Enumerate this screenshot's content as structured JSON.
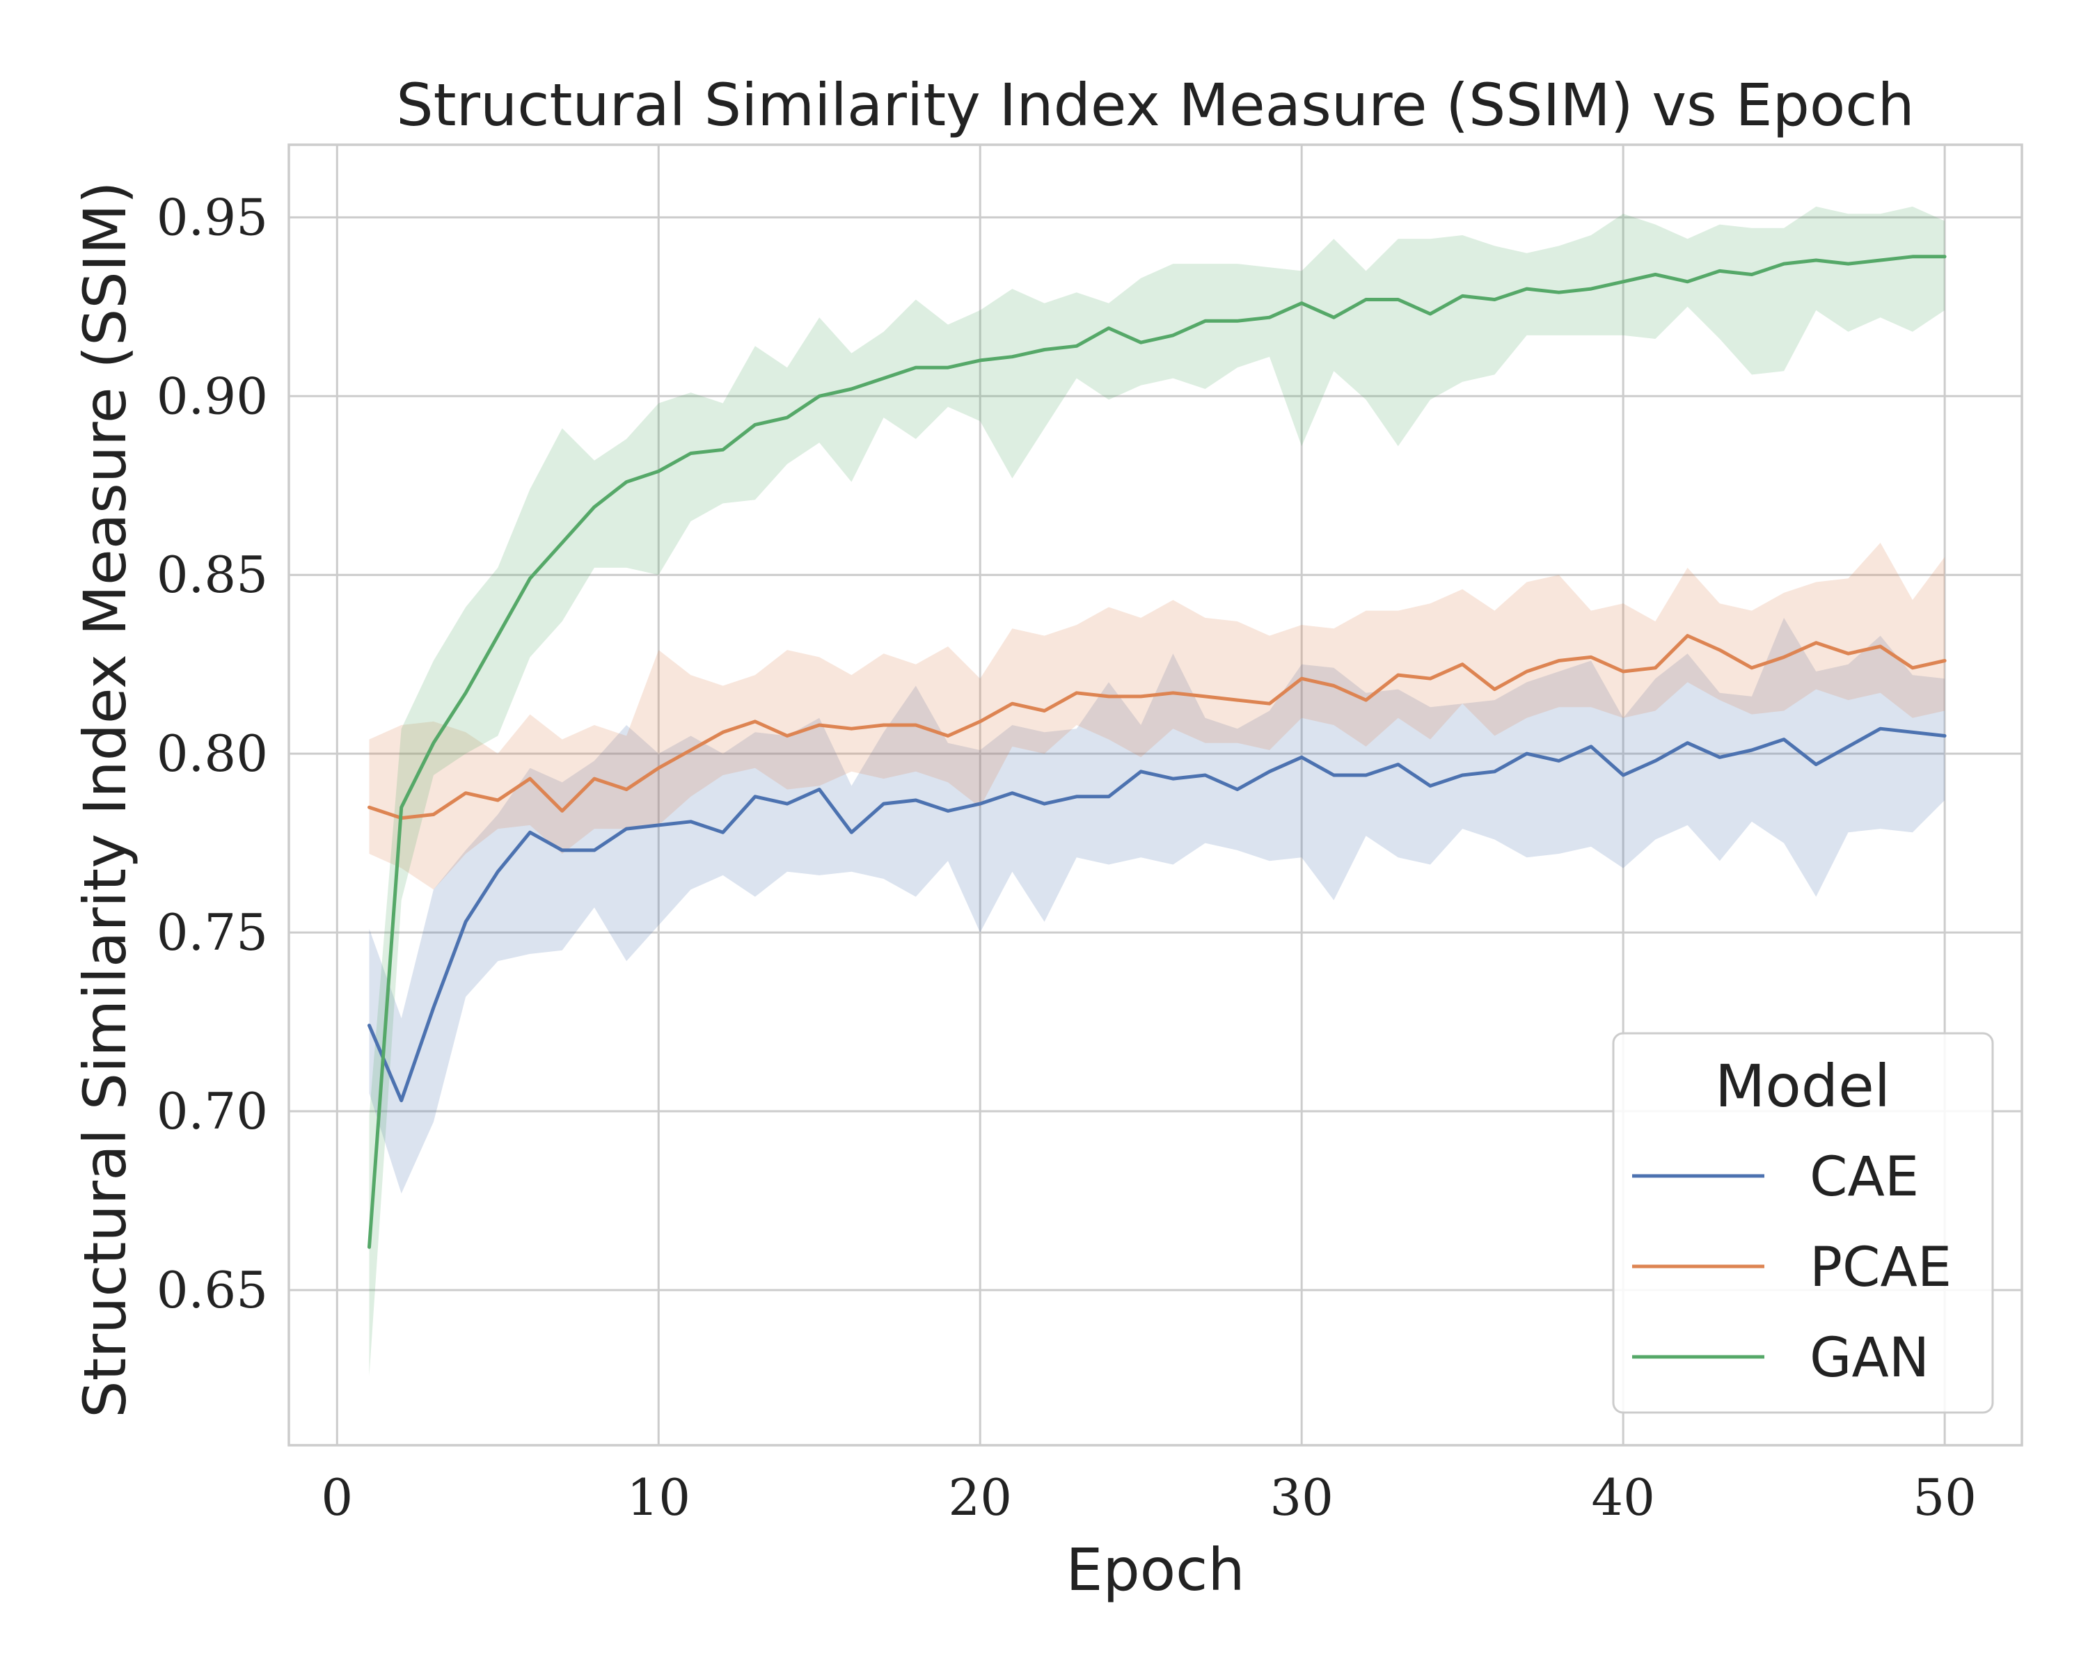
{
  "chart_data": {
    "type": "line",
    "title": "Structural Similarity Index Measure (SSIM) vs Epoch",
    "xlabel": "Epoch",
    "ylabel": "Structural Similarity Index Measure (SSIM)",
    "xlim": [
      -1.5,
      52.4
    ],
    "ylim": [
      0.6066,
      0.9703
    ],
    "xticks": [
      0,
      10,
      20,
      30,
      40,
      50
    ],
    "xtick_labels": [
      "0",
      "10",
      "20",
      "30",
      "40",
      "50"
    ],
    "yticks": [
      0.65,
      0.7,
      0.75,
      0.8,
      0.85,
      0.9,
      0.95
    ],
    "ytick_labels": [
      "0.65",
      "0.70",
      "0.75",
      "0.80",
      "0.85",
      "0.90",
      "0.95"
    ],
    "grid": true,
    "legend": {
      "title": "Model",
      "position": "lower-right"
    },
    "x": [
      1,
      2,
      3,
      4,
      5,
      6,
      7,
      8,
      9,
      10,
      11,
      12,
      13,
      14,
      15,
      16,
      17,
      18,
      19,
      20,
      21,
      22,
      23,
      24,
      25,
      26,
      27,
      28,
      29,
      30,
      31,
      32,
      33,
      34,
      35,
      36,
      37,
      38,
      39,
      40,
      41,
      42,
      43,
      44,
      45,
      46,
      47,
      48,
      49,
      50
    ],
    "series": [
      {
        "name": "CAE",
        "color": "#4c72b0",
        "values": [
          0.724,
          0.703,
          0.729,
          0.753,
          0.767,
          0.778,
          0.773,
          0.773,
          0.779,
          0.78,
          0.781,
          0.778,
          0.788,
          0.786,
          0.79,
          0.778,
          0.786,
          0.787,
          0.784,
          0.786,
          0.789,
          0.786,
          0.788,
          0.788,
          0.795,
          0.793,
          0.794,
          0.79,
          0.795,
          0.799,
          0.794,
          0.794,
          0.797,
          0.791,
          0.794,
          0.795,
          0.8,
          0.798,
          0.802,
          0.794,
          0.798,
          0.803,
          0.799,
          0.801,
          0.804,
          0.797,
          0.802,
          0.807,
          0.806,
          0.805
        ],
        "lower": [
          0.705,
          0.677,
          0.697,
          0.732,
          0.742,
          0.744,
          0.745,
          0.757,
          0.742,
          0.752,
          0.762,
          0.766,
          0.76,
          0.767,
          0.766,
          0.767,
          0.765,
          0.76,
          0.77,
          0.75,
          0.767,
          0.753,
          0.771,
          0.769,
          0.771,
          0.769,
          0.775,
          0.773,
          0.77,
          0.771,
          0.759,
          0.777,
          0.771,
          0.769,
          0.779,
          0.776,
          0.771,
          0.772,
          0.774,
          0.768,
          0.776,
          0.78,
          0.77,
          0.781,
          0.775,
          0.76,
          0.778,
          0.779,
          0.778,
          0.787
        ],
        "upper": [
          0.751,
          0.726,
          0.762,
          0.773,
          0.783,
          0.796,
          0.792,
          0.798,
          0.808,
          0.8,
          0.805,
          0.8,
          0.806,
          0.805,
          0.81,
          0.791,
          0.806,
          0.819,
          0.803,
          0.801,
          0.808,
          0.806,
          0.807,
          0.82,
          0.808,
          0.828,
          0.81,
          0.807,
          0.812,
          0.825,
          0.824,
          0.817,
          0.818,
          0.813,
          0.814,
          0.815,
          0.82,
          0.823,
          0.826,
          0.81,
          0.821,
          0.828,
          0.817,
          0.816,
          0.838,
          0.823,
          0.825,
          0.833,
          0.822,
          0.821
        ]
      },
      {
        "name": "PCAE",
        "color": "#dd8452",
        "values": [
          0.785,
          0.782,
          0.783,
          0.789,
          0.787,
          0.793,
          0.784,
          0.793,
          0.79,
          0.796,
          0.801,
          0.806,
          0.809,
          0.805,
          0.808,
          0.807,
          0.808,
          0.808,
          0.805,
          0.809,
          0.814,
          0.812,
          0.817,
          0.816,
          0.816,
          0.817,
          0.816,
          0.815,
          0.814,
          0.821,
          0.819,
          0.815,
          0.822,
          0.821,
          0.825,
          0.818,
          0.823,
          0.826,
          0.827,
          0.823,
          0.824,
          0.833,
          0.829,
          0.824,
          0.827,
          0.831,
          0.828,
          0.83,
          0.824,
          0.826
        ],
        "lower": [
          0.772,
          0.768,
          0.762,
          0.772,
          0.779,
          0.78,
          0.772,
          0.779,
          0.779,
          0.78,
          0.788,
          0.794,
          0.796,
          0.79,
          0.791,
          0.795,
          0.793,
          0.795,
          0.792,
          0.785,
          0.802,
          0.8,
          0.808,
          0.804,
          0.799,
          0.807,
          0.803,
          0.803,
          0.801,
          0.81,
          0.808,
          0.802,
          0.81,
          0.804,
          0.814,
          0.805,
          0.81,
          0.813,
          0.813,
          0.81,
          0.812,
          0.82,
          0.815,
          0.811,
          0.812,
          0.818,
          0.815,
          0.817,
          0.81,
          0.812
        ],
        "upper": [
          0.804,
          0.808,
          0.809,
          0.806,
          0.8,
          0.811,
          0.804,
          0.808,
          0.805,
          0.829,
          0.822,
          0.819,
          0.822,
          0.829,
          0.827,
          0.822,
          0.828,
          0.825,
          0.83,
          0.821,
          0.835,
          0.833,
          0.836,
          0.841,
          0.838,
          0.843,
          0.838,
          0.837,
          0.833,
          0.836,
          0.835,
          0.84,
          0.84,
          0.842,
          0.846,
          0.84,
          0.848,
          0.85,
          0.84,
          0.842,
          0.837,
          0.852,
          0.842,
          0.84,
          0.845,
          0.848,
          0.849,
          0.859,
          0.843,
          0.855
        ]
      },
      {
        "name": "GAN",
        "color": "#55a868",
        "values": [
          0.662,
          0.785,
          0.803,
          0.817,
          0.833,
          0.849,
          0.859,
          0.869,
          0.876,
          0.879,
          0.884,
          0.885,
          0.892,
          0.894,
          0.9,
          0.902,
          0.905,
          0.908,
          0.908,
          0.91,
          0.911,
          0.913,
          0.914,
          0.919,
          0.915,
          0.917,
          0.921,
          0.921,
          0.922,
          0.926,
          0.922,
          0.927,
          0.927,
          0.923,
          0.928,
          0.927,
          0.93,
          0.929,
          0.93,
          0.932,
          0.934,
          0.932,
          0.935,
          0.934,
          0.937,
          0.938,
          0.937,
          0.938,
          0.939,
          0.939
        ],
        "lower": [
          0.626,
          0.759,
          0.794,
          0.8,
          0.805,
          0.827,
          0.837,
          0.852,
          0.852,
          0.85,
          0.865,
          0.87,
          0.871,
          0.881,
          0.887,
          0.876,
          0.894,
          0.888,
          0.897,
          0.893,
          0.877,
          0.891,
          0.905,
          0.899,
          0.903,
          0.905,
          0.902,
          0.908,
          0.911,
          0.886,
          0.907,
          0.899,
          0.886,
          0.899,
          0.904,
          0.906,
          0.917,
          0.917,
          0.917,
          0.917,
          0.916,
          0.925,
          0.916,
          0.906,
          0.907,
          0.924,
          0.918,
          0.922,
          0.918,
          0.924
        ],
        "upper": [
          0.699,
          0.807,
          0.826,
          0.841,
          0.852,
          0.874,
          0.891,
          0.882,
          0.888,
          0.898,
          0.901,
          0.898,
          0.914,
          0.908,
          0.922,
          0.912,
          0.918,
          0.927,
          0.92,
          0.924,
          0.93,
          0.926,
          0.929,
          0.926,
          0.933,
          0.937,
          0.937,
          0.937,
          0.936,
          0.935,
          0.944,
          0.935,
          0.944,
          0.944,
          0.945,
          0.942,
          0.94,
          0.942,
          0.945,
          0.951,
          0.948,
          0.944,
          0.948,
          0.947,
          0.947,
          0.953,
          0.951,
          0.951,
          0.953,
          0.949
        ]
      }
    ]
  }
}
